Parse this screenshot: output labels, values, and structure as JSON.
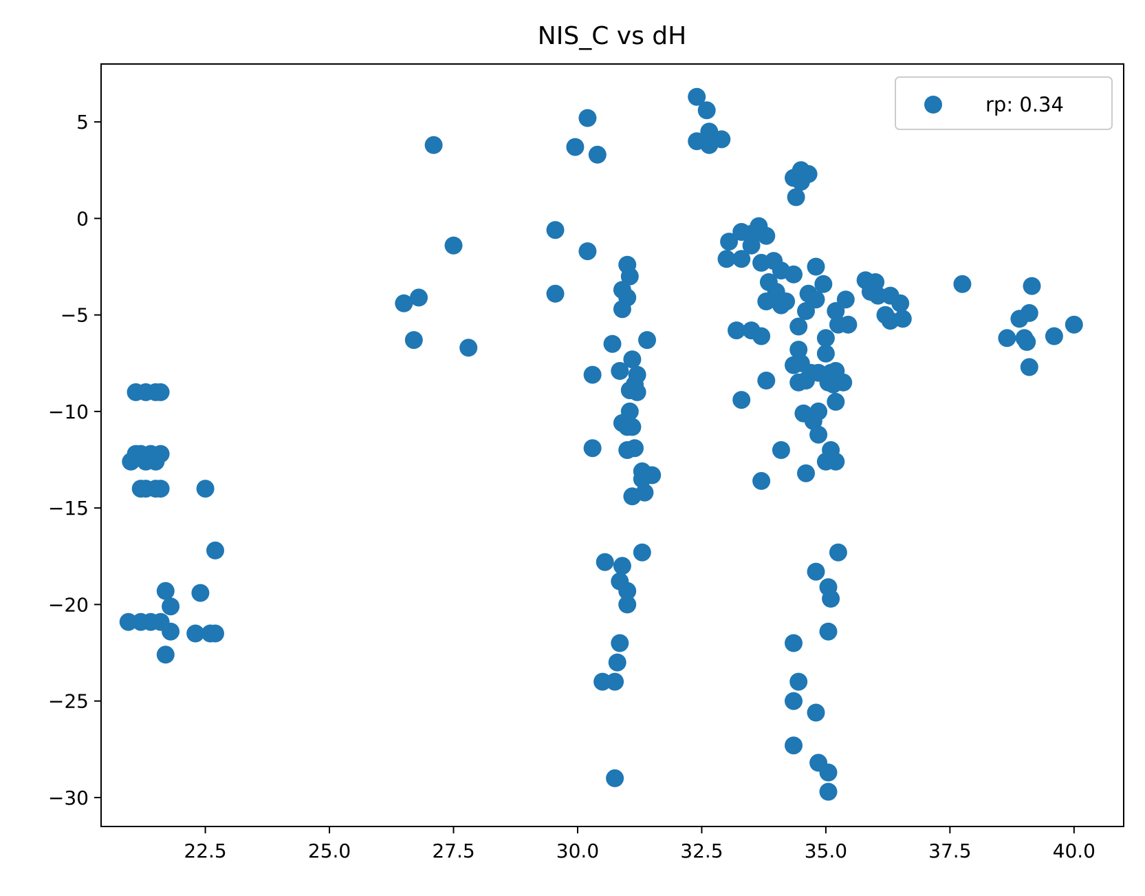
{
  "chart_data": {
    "type": "scatter",
    "title": "NIS_C vs dH",
    "xlabel": "",
    "ylabel": "",
    "xlim": [
      20.4,
      41.0
    ],
    "ylim": [
      -31.5,
      8.0
    ],
    "grid": false,
    "legend_position": "top-right",
    "x_ticks": [
      22.5,
      25.0,
      27.5,
      30.0,
      32.5,
      35.0,
      37.5,
      40.0
    ],
    "x_tick_labels": [
      "22.5",
      "25.0",
      "27.5",
      "30.0",
      "32.5",
      "35.0",
      "37.5",
      "40.0"
    ],
    "y_ticks": [
      5,
      0,
      -5,
      -10,
      -15,
      -20,
      -25,
      -30
    ],
    "y_tick_labels": [
      "5",
      "0",
      "−5",
      "−10",
      "−15",
      "−20",
      "−25",
      "−30"
    ],
    "series": [
      {
        "name": "rp: 0.34",
        "color": "#1f77b4",
        "points": [
          [
            21.1,
            -9.0
          ],
          [
            21.3,
            -9.0
          ],
          [
            21.5,
            -9.0
          ],
          [
            21.6,
            -9.0
          ],
          [
            21.0,
            -12.6
          ],
          [
            21.1,
            -12.2
          ],
          [
            21.2,
            -12.2
          ],
          [
            21.3,
            -12.6
          ],
          [
            21.4,
            -12.2
          ],
          [
            21.5,
            -12.6
          ],
          [
            21.6,
            -12.2
          ],
          [
            21.2,
            -14.0
          ],
          [
            21.3,
            -14.0
          ],
          [
            21.5,
            -14.0
          ],
          [
            21.6,
            -14.0
          ],
          [
            22.5,
            -14.0
          ],
          [
            22.7,
            -17.2
          ],
          [
            21.7,
            -19.3
          ],
          [
            21.8,
            -20.1
          ],
          [
            21.8,
            -21.4
          ],
          [
            21.7,
            -22.6
          ],
          [
            20.95,
            -20.9
          ],
          [
            21.2,
            -20.9
          ],
          [
            21.4,
            -20.9
          ],
          [
            21.6,
            -20.9
          ],
          [
            22.4,
            -19.4
          ],
          [
            22.3,
            -21.5
          ],
          [
            22.6,
            -21.5
          ],
          [
            22.7,
            -21.5
          ],
          [
            26.5,
            -4.4
          ],
          [
            26.8,
            -4.1
          ],
          [
            26.7,
            -6.3
          ],
          [
            27.1,
            3.8
          ],
          [
            27.5,
            -1.4
          ],
          [
            27.8,
            -6.7
          ],
          [
            29.55,
            -0.6
          ],
          [
            29.55,
            -3.9
          ],
          [
            29.95,
            3.7
          ],
          [
            30.2,
            5.2
          ],
          [
            30.4,
            3.3
          ],
          [
            30.2,
            -1.7
          ],
          [
            30.3,
            -8.1
          ],
          [
            30.3,
            -11.9
          ],
          [
            30.7,
            -6.5
          ],
          [
            30.85,
            -7.9
          ],
          [
            31.0,
            -2.4
          ],
          [
            31.05,
            -3.0
          ],
          [
            30.9,
            -3.7
          ],
          [
            31.0,
            -4.1
          ],
          [
            30.9,
            -4.7
          ],
          [
            31.1,
            -7.3
          ],
          [
            31.2,
            -8.1
          ],
          [
            31.15,
            -8.6
          ],
          [
            31.05,
            -8.9
          ],
          [
            31.2,
            -9.0
          ],
          [
            31.05,
            -10.0
          ],
          [
            30.9,
            -10.6
          ],
          [
            31.0,
            -10.8
          ],
          [
            31.1,
            -10.8
          ],
          [
            31.0,
            -12.0
          ],
          [
            31.15,
            -11.9
          ],
          [
            31.3,
            -13.1
          ],
          [
            31.3,
            -13.5
          ],
          [
            31.5,
            -13.3
          ],
          [
            31.35,
            -14.2
          ],
          [
            31.1,
            -14.4
          ],
          [
            31.3,
            -17.3
          ],
          [
            31.4,
            -6.3
          ],
          [
            30.55,
            -17.8
          ],
          [
            30.9,
            -18.0
          ],
          [
            30.85,
            -18.8
          ],
          [
            31.0,
            -19.3
          ],
          [
            31.0,
            -20.0
          ],
          [
            30.85,
            -22.0
          ],
          [
            30.8,
            -23.0
          ],
          [
            30.5,
            -24.0
          ],
          [
            30.75,
            -24.0
          ],
          [
            30.75,
            -29.0
          ],
          [
            32.4,
            6.3
          ],
          [
            32.6,
            5.6
          ],
          [
            32.4,
            4.0
          ],
          [
            32.65,
            4.5
          ],
          [
            32.65,
            3.8
          ],
          [
            32.9,
            4.1
          ],
          [
            33.05,
            -1.2
          ],
          [
            33.3,
            -0.7
          ],
          [
            33.5,
            -0.8
          ],
          [
            33.65,
            -0.4
          ],
          [
            33.8,
            -0.9
          ],
          [
            33.0,
            -2.1
          ],
          [
            33.3,
            -2.1
          ],
          [
            33.5,
            -1.4
          ],
          [
            33.7,
            -2.3
          ],
          [
            33.85,
            -3.3
          ],
          [
            33.95,
            -2.2
          ],
          [
            34.1,
            -2.7
          ],
          [
            34.35,
            -2.9
          ],
          [
            34.0,
            -3.8
          ],
          [
            33.8,
            -4.3
          ],
          [
            34.2,
            -4.3
          ],
          [
            34.1,
            -4.5
          ],
          [
            34.35,
            2.1
          ],
          [
            34.5,
            2.5
          ],
          [
            34.65,
            2.3
          ],
          [
            34.5,
            1.9
          ],
          [
            34.4,
            1.1
          ],
          [
            34.8,
            -2.5
          ],
          [
            34.95,
            -3.4
          ],
          [
            34.65,
            -3.9
          ],
          [
            34.8,
            -4.2
          ],
          [
            34.6,
            -4.8
          ],
          [
            34.45,
            -5.6
          ],
          [
            35.2,
            -4.8
          ],
          [
            35.4,
            -4.2
          ],
          [
            35.0,
            -6.2
          ],
          [
            35.0,
            -7.0
          ],
          [
            35.1,
            -8.0
          ],
          [
            34.45,
            -6.8
          ],
          [
            34.35,
            -7.6
          ],
          [
            34.5,
            -7.5
          ],
          [
            34.6,
            -8.4
          ],
          [
            34.45,
            -8.5
          ],
          [
            34.7,
            -8.0
          ],
          [
            34.85,
            -8.0
          ],
          [
            35.05,
            -8.5
          ],
          [
            35.15,
            -8.6
          ],
          [
            35.2,
            -7.9
          ],
          [
            35.35,
            -8.5
          ],
          [
            35.2,
            -9.5
          ],
          [
            34.85,
            -10.0
          ],
          [
            34.55,
            -10.1
          ],
          [
            34.75,
            -10.5
          ],
          [
            34.85,
            -11.2
          ],
          [
            35.1,
            -12.0
          ],
          [
            35.0,
            -12.6
          ],
          [
            35.2,
            -12.6
          ],
          [
            34.6,
            -13.2
          ],
          [
            35.25,
            -17.3
          ],
          [
            33.2,
            -5.8
          ],
          [
            33.5,
            -5.8
          ],
          [
            33.7,
            -6.1
          ],
          [
            33.8,
            -8.4
          ],
          [
            33.3,
            -9.4
          ],
          [
            34.1,
            -12.0
          ],
          [
            33.7,
            -13.6
          ],
          [
            35.45,
            -5.5
          ],
          [
            35.25,
            -5.5
          ],
          [
            34.8,
            -18.3
          ],
          [
            35.05,
            -19.1
          ],
          [
            35.1,
            -19.7
          ],
          [
            35.05,
            -21.4
          ],
          [
            34.35,
            -22.0
          ],
          [
            34.45,
            -24.0
          ],
          [
            34.35,
            -25.0
          ],
          [
            34.8,
            -25.6
          ],
          [
            34.35,
            -27.3
          ],
          [
            34.85,
            -28.2
          ],
          [
            35.05,
            -28.7
          ],
          [
            35.05,
            -29.7
          ],
          [
            35.8,
            -3.2
          ],
          [
            36.0,
            -3.3
          ],
          [
            35.9,
            -3.8
          ],
          [
            36.05,
            -4.0
          ],
          [
            36.3,
            -4.0
          ],
          [
            36.2,
            -5.0
          ],
          [
            36.3,
            -5.3
          ],
          [
            36.5,
            -4.4
          ],
          [
            36.55,
            -5.2
          ],
          [
            37.75,
            -3.4
          ],
          [
            38.65,
            -6.2
          ],
          [
            38.9,
            -5.2
          ],
          [
            39.0,
            -6.2
          ],
          [
            39.05,
            -6.4
          ],
          [
            39.15,
            -3.5
          ],
          [
            39.1,
            -4.9
          ],
          [
            39.1,
            -7.7
          ],
          [
            39.6,
            -6.1
          ],
          [
            40.0,
            -5.5
          ]
        ]
      }
    ]
  }
}
